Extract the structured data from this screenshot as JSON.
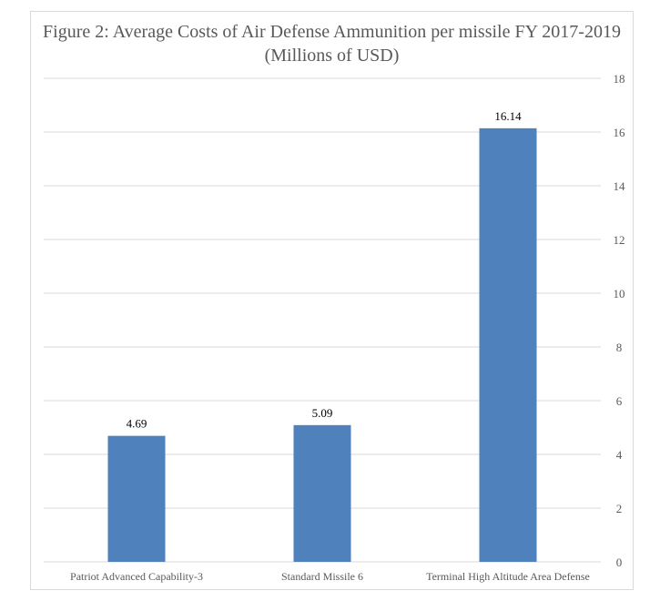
{
  "chart_data": {
    "type": "bar",
    "title": "Figure 2: Average Costs of Air Defense Ammunition per missile FY 2017-2019 (Millions of USD)",
    "categories": [
      "Patriot Advanced Capability-3",
      "Standard Missile 6",
      "Terminal High Altitude Area Defense"
    ],
    "values": [
      4.69,
      5.09,
      16.14
    ],
    "data_labels": [
      "4.69",
      "5.09",
      "16.14"
    ],
    "xlabel": "",
    "ylabel": "",
    "ylim": [
      0,
      18
    ],
    "yticks": [
      0,
      2,
      4,
      6,
      8,
      10,
      12,
      14,
      16,
      18
    ],
    "y_axis_side": "right",
    "grid": true,
    "bar_color": "#4f81bd"
  }
}
